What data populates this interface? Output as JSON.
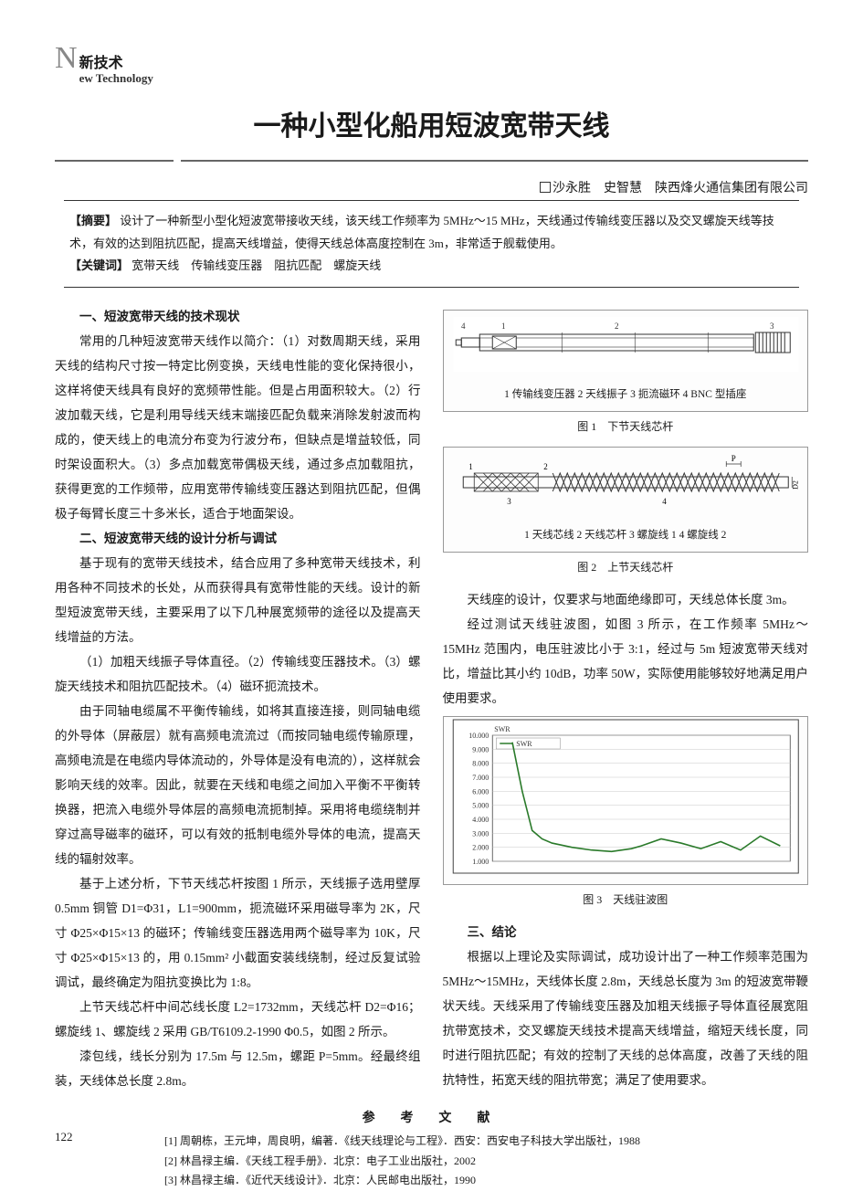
{
  "header": {
    "label_cn": "新技术",
    "big_letter": "N",
    "label_en": "ew Technology"
  },
  "title": "一种小型化船用短波宽带天线",
  "authors_line": "沙永胜　史智慧　陕西烽火通信集团有限公司",
  "abstract": {
    "label": "【摘要】",
    "text": "设计了一种新型小型化短波宽带接收天线，该天线工作频率为 5MHz～15 MHz，天线通过传输线变压器以及交叉螺旋天线等技术，有效的达到阻抗匹配，提高天线增益，使得天线总体高度控制在 3m，非常适于舰载使用。",
    "keyword_label": "【关键词】",
    "keywords": "宽带天线　传输线变压器　阻抗匹配　螺旋天线"
  },
  "sections": {
    "s1_heading": "一、短波宽带天线的技术现状",
    "s1_p1": "常用的几种短波宽带天线作以简介：（1）对数周期天线，采用天线的结构尺寸按一特定比例变换，天线电性能的变化保持很小，这样将使天线具有良好的宽频带性能。但是占用面积较大。（2）行波加载天线，它是利用导线天线末端接匹配负载来消除发射波而构成的，使天线上的电流分布变为行波分布，但缺点是增益较低，同时架设面积大。（3）多点加载宽带偶极天线，通过多点加载阻抗，获得更宽的工作频带，应用宽带传输线变压器达到阻抗匹配，但偶极子每臂长度三十多米长，适合于地面架设。",
    "s2_heading": "二、短波宽带天线的设计分析与调试",
    "s2_p1": "基于现有的宽带天线技术，结合应用了多种宽带天线技术，利用各种不同技术的长处，从而获得具有宽带性能的天线。设计的新型短波宽带天线，主要采用了以下几种展宽频带的途径以及提高天线增益的方法。",
    "s2_p2": "（1）加粗天线振子导体直径。（2）传输线变压器技术。（3）螺旋天线技术和阻抗匹配技术。（4）磁环扼流技术。",
    "s2_p3": "由于同轴电缆属不平衡传输线，如将其直接连接，则同轴电缆的外导体（屏蔽层）就有高频电流流过（而按同轴电缆传输原理，高频电流是在电缆内导体流动的，外导体是没有电流的），这样就会影响天线的效率。因此，就要在天线和电缆之间加入平衡不平衡转换器，把流入电缆外导体层的高频电流扼制掉。采用将电缆绕制并穿过高导磁率的磁环，可以有效的抵制电缆外导体的电流，提高天线的辐射效率。",
    "s2_p4": "基于上述分析，下节天线芯杆按图 1 所示，天线振子选用壁厚 0.5mm 铜管 D1=Φ31，L1=900mm，扼流磁环采用磁导率为 2K，尺寸 Φ25×Φ15×13 的磁环；传输线变压器选用两个磁导率为 10K，尺寸 Φ25×Φ15×13 的，用 0.15mm² 小截面安装线绕制，经过反复试验调试，最终确定为阻抗变换比为 1:8。",
    "s2_p5": "上节天线芯杆中间芯线长度 L2=1732mm，天线芯杆 D2=Φ16；螺旋线 1、螺旋线 2 采用 GB/T6109.2-1990 Φ0.5，如图 2 所示。",
    "s2_p6": "漆包线，线长分别为 17.5m 与 12.5m，螺距 P=5mm。经最终组装，天线体总长度 2.8m。",
    "r_p1": "天线座的设计，仅要求与地面绝缘即可，天线总体长度 3m。",
    "r_p2": "经过测试天线驻波图，如图 3 所示，在工作频率 5MHz～15MHz 范围内，电压驻波比小于 3:1，经过与 5m 短波宽带天线对比，增益比其小约 10dB，功率 50W，实际使用能够较好地满足用户使用要求。",
    "s3_heading": "三、结论",
    "s3_p1": "根据以上理论及实际调试，成功设计出了一种工作频率范围为 5MHz～15MHz，天线体长度 2.8m，天线总长度为 3m 的短波宽带鞭状天线。天线采用了传输线变压器及加粗天线振子导体直径展宽阻抗带宽技术，交叉螺旋天线技术提高天线增益，缩短天线长度，同时进行阻抗匹配；有效的控制了天线的总体高度，改善了天线的阻抗特性，拓宽天线的阻抗带宽；满足了使用要求。"
  },
  "figures": {
    "fig1_legend": "1 传输线变压器 2 天线振子 3 扼流磁环 4 BNC 型插座",
    "fig1_caption": "图 1　下节天线芯杆",
    "fig2_legend": "1 天线芯线 2 天线芯杆 3 螺旋线 1 4 螺旋线 2",
    "fig2_caption": "图 2　上节天线芯杆",
    "fig3_caption": "图 3　天线驻波图",
    "fig1": {
      "stroke": "#333333",
      "bg": "#ffffff",
      "labels": [
        "1",
        "2",
        "3",
        "4"
      ]
    },
    "fig2": {
      "stroke": "#333333",
      "bg": "#ffffff",
      "labels": [
        "1",
        "2",
        "3",
        "4",
        "P"
      ],
      "d2_label": "D2"
    },
    "fig3": {
      "type": "line",
      "title": "SWR",
      "xlim": [
        0,
        30
      ],
      "ylim": [
        1.0,
        10.0
      ],
      "yticks": [
        1.0,
        2.0,
        3.0,
        4.0,
        5.0,
        6.0,
        7.0,
        8.0,
        9.0,
        10.0
      ],
      "ytick_labels": [
        "1.000",
        "2.000",
        "3.000",
        "4.000",
        "5.000",
        "6.000",
        "7.000",
        "8.000",
        "9.000",
        "10.000"
      ],
      "x_values": [
        2,
        3,
        4,
        5,
        6,
        8,
        10,
        12,
        14,
        15,
        17,
        19,
        21,
        23,
        25,
        27,
        29
      ],
      "y_values": [
        9.5,
        6.0,
        3.2,
        2.6,
        2.3,
        2.0,
        1.8,
        1.7,
        1.9,
        2.1,
        2.6,
        2.3,
        1.9,
        2.4,
        1.8,
        2.8,
        2.1
      ],
      "line_color": "#2a7a2a",
      "grid_color": "#c8c8c8",
      "background_color": "#ffffff",
      "border_color": "#444444",
      "axis_fontsize": 8,
      "legend_labels": [
        "SWR"
      ]
    }
  },
  "references": {
    "heading": "参 考 文 献",
    "items": [
      "[1] 周朝栋，王元坤，周良明，编著．《线天线理论与工程》．西安：西安电子科技大学出版社，1988",
      "[2] 林昌禄主编．《天线工程手册》．北京：电子工业出版社，2002",
      "[3] 林昌禄主编．《近代天线设计》．北京：人民邮电出版社，1990"
    ]
  },
  "page_number": "122",
  "colors": {
    "text": "#1a1a1a",
    "rule": "#666666",
    "border": "#333333",
    "fig_border": "#999999"
  }
}
